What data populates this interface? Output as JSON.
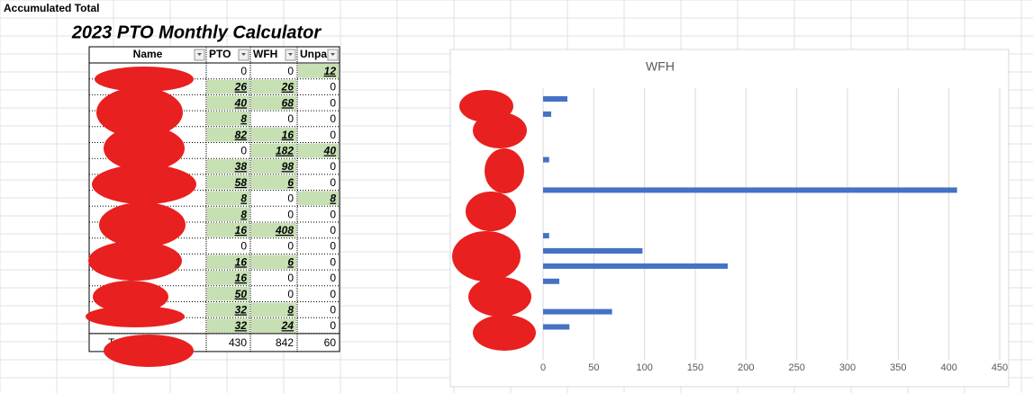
{
  "header": {
    "title": "Accumulated Total"
  },
  "table": {
    "title": "2023 PTO Monthly Calculator",
    "columns": [
      "Name",
      "PTO",
      "WFH",
      "Unpa"
    ],
    "rows": [
      [
        0,
        0,
        12
      ],
      [
        26,
        26,
        0
      ],
      [
        40,
        68,
        0
      ],
      [
        8,
        0,
        0
      ],
      [
        82,
        16,
        0
      ],
      [
        0,
        182,
        40
      ],
      [
        38,
        98,
        0
      ],
      [
        58,
        6,
        0
      ],
      [
        8,
        0,
        8
      ],
      [
        8,
        0,
        0
      ],
      [
        16,
        408,
        0
      ],
      [
        0,
        0,
        0
      ],
      [
        16,
        6,
        0
      ],
      [
        16,
        0,
        0
      ],
      [
        50,
        0,
        0
      ],
      [
        32,
        8,
        0
      ],
      [
        32,
        24,
        0
      ]
    ],
    "total": {
      "label": "Total",
      "values": [
        430,
        842,
        60
      ]
    }
  },
  "chart_data": {
    "type": "bar",
    "orientation": "horizontal",
    "title": "WFH",
    "categories": [
      null,
      null,
      null,
      null,
      null,
      null,
      null,
      null,
      null,
      null,
      null,
      null,
      null,
      null,
      null,
      null,
      null
    ],
    "values": [
      24,
      8,
      0,
      0,
      6,
      0,
      408,
      0,
      0,
      6,
      98,
      182,
      16,
      0,
      68,
      26,
      0
    ],
    "color": "#4472c4",
    "xlim": [
      0,
      450
    ],
    "xticks": [
      0,
      50,
      100,
      150,
      200,
      250,
      300,
      350,
      400,
      450
    ],
    "grid": true
  }
}
